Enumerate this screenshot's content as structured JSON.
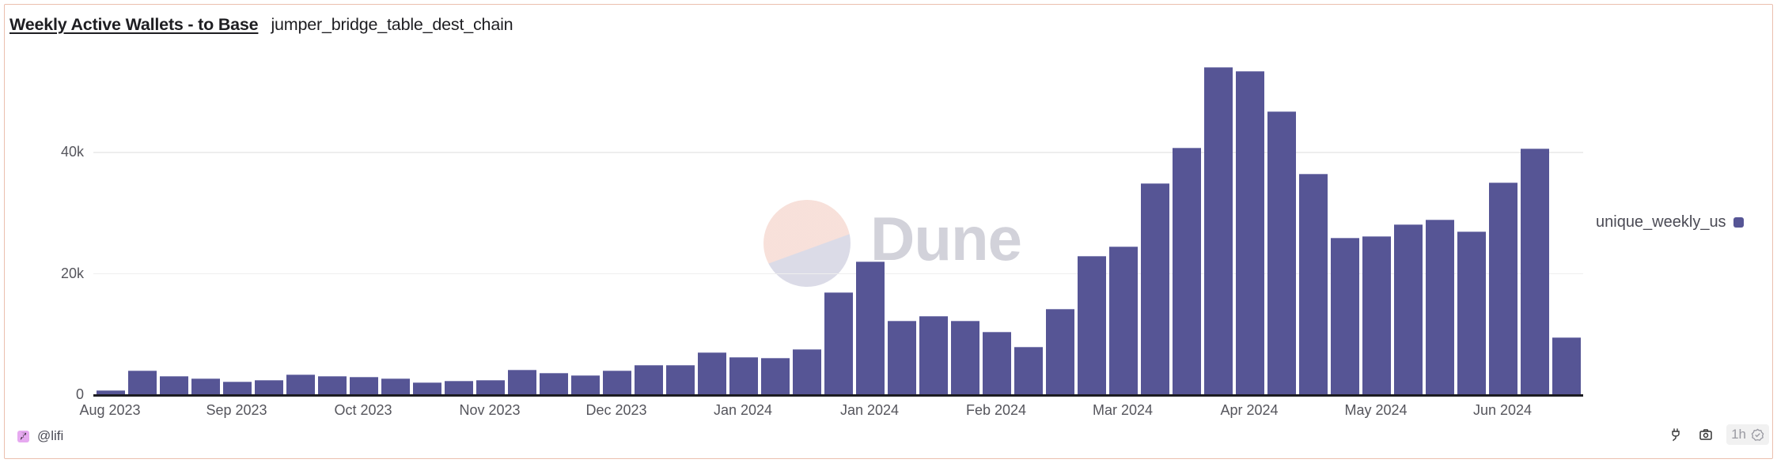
{
  "header": {
    "title": "Weekly Active Wallets - to Base",
    "subtitle": "jumper_bridge_table_dest_chain"
  },
  "legend": {
    "label": "unique_weekly_us",
    "color": "#565595"
  },
  "watermark": {
    "text": "Dune"
  },
  "footer": {
    "owner": "@lifi",
    "refresh_label": "1h",
    "icons": [
      "plug-icon",
      "camera-icon",
      "check-badge-icon"
    ]
  },
  "colors": {
    "bar": "#565595",
    "border": "#ebbfae",
    "grid": "#eeeeee",
    "axis": "#1d1d22"
  },
  "chart_data": {
    "type": "bar",
    "title": "Weekly Active Wallets - to Base",
    "subtitle": "jumper_bridge_table_dest_chain",
    "xlabel": "",
    "ylabel": "",
    "ylim": [
      0,
      56000
    ],
    "yticks": [
      0,
      20000,
      40000
    ],
    "ytick_labels": [
      "0",
      "20k",
      "40k"
    ],
    "xtick_labels": [
      "Aug 2023",
      "Sep 2023",
      "Oct 2023",
      "Nov 2023",
      "Dec 2023",
      "Jan 2024",
      "Jan 2024",
      "Feb 2024",
      "Mar 2024",
      "Apr 2024",
      "May 2024",
      "Jun 2024"
    ],
    "xtick_every_n_bars": 4,
    "grid": true,
    "legend_position": "right",
    "series": [
      {
        "name": "unique_weekly_us",
        "color": "#565595",
        "values": [
          800,
          4000,
          3100,
          2800,
          2200,
          2500,
          3400,
          3100,
          3000,
          2750,
          2100,
          2400,
          2500,
          4200,
          3600,
          3300,
          4100,
          4900,
          4900,
          7000,
          6200,
          6100,
          7600,
          17000,
          22100,
          12200,
          13100,
          12300,
          10500,
          7900,
          14200,
          22900,
          24500,
          34900,
          40800,
          54200,
          53500,
          46900,
          36500,
          25900,
          26200,
          28200,
          28900,
          27000,
          35100,
          40700,
          9500
        ]
      }
    ]
  }
}
